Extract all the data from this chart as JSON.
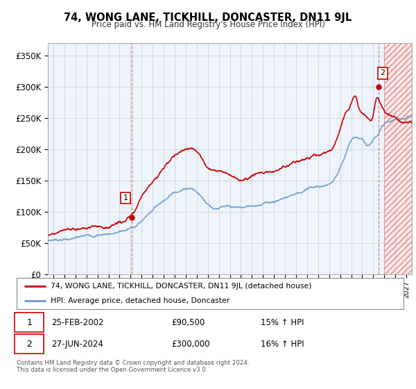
{
  "title": "74, WONG LANE, TICKHILL, DONCASTER, DN11 9JL",
  "subtitle": "Price paid vs. HM Land Registry's House Price Index (HPI)",
  "ylabel_ticks": [
    "£0",
    "£50K",
    "£100K",
    "£150K",
    "£200K",
    "£250K",
    "£300K",
    "£350K"
  ],
  "ytick_values": [
    0,
    50000,
    100000,
    150000,
    200000,
    250000,
    300000,
    350000
  ],
  "ylim": [
    0,
    370000
  ],
  "xlim_start": 1994.5,
  "xlim_end": 2027.5,
  "price_color": "#cc0000",
  "hpi_line_color": "#6699cc",
  "hpi_fill_color": "#ddeeff",
  "transaction1_year": 2002.12,
  "transaction1_value": 90500,
  "transaction1_date": "25-FEB-2002",
  "transaction1_price": "£90,500",
  "transaction1_hpi": "15% ↑ HPI",
  "transaction2_year": 2024.49,
  "transaction2_value": 300000,
  "transaction2_date": "27-JUN-2024",
  "transaction2_price": "£300,000",
  "transaction2_hpi": "16% ↑ HPI",
  "legend_label1": "74, WONG LANE, TICKHILL, DONCASTER, DN11 9JL (detached house)",
  "legend_label2": "HPI: Average price, detached house, Doncaster",
  "footer": "Contains HM Land Registry data © Crown copyright and database right 2024.\nThis data is licensed under the Open Government Licence v3.0.",
  "background_color": "#ffffff",
  "chart_bg_color": "#eef4fb",
  "grid_color": "#cccccc",
  "hatch_start": 2025.0
}
